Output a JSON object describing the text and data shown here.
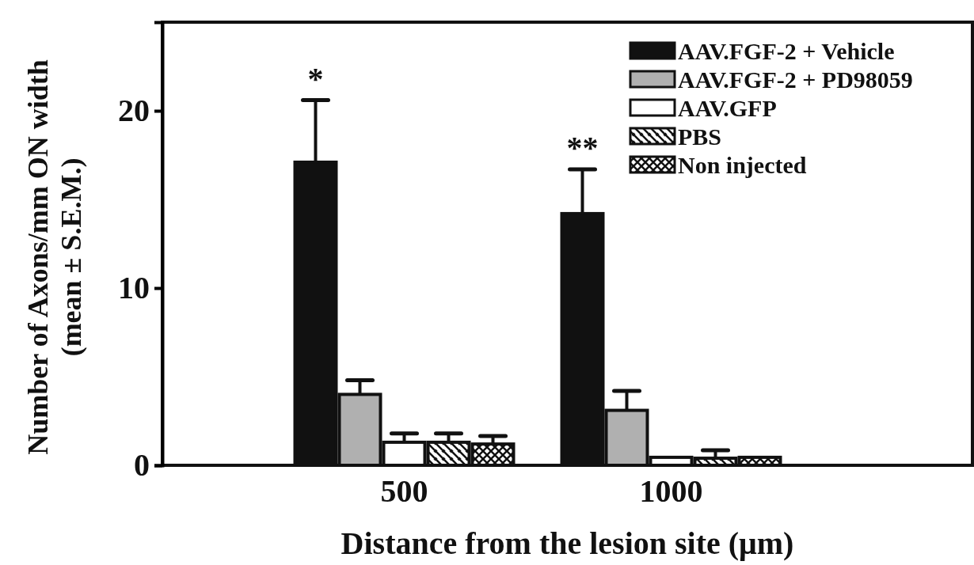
{
  "chart_data": {
    "type": "bar",
    "xlabel": "Distance from the lesion site (μm)",
    "ylabel": "Number of Axons/mm ON width\n(mean ± S.E.M.)",
    "categories": [
      "500",
      "1000"
    ],
    "series": [
      {
        "name": "AAV.FGF-2 + Vehicle",
        "color": "#111111",
        "values": [
          17.1,
          14.2
        ],
        "errors": [
          3.5,
          2.5
        ]
      },
      {
        "name": "AAV.FGF-2 + PD98059",
        "color": "#b0b0b0",
        "values": [
          4.0,
          3.1
        ],
        "errors": [
          0.8,
          1.1
        ]
      },
      {
        "name": "AAV.GFP",
        "color": "#ffffff",
        "values": [
          1.3,
          0.45
        ],
        "errors": [
          0.5,
          null
        ]
      },
      {
        "name": "PBS",
        "color": "#111111",
        "values": [
          1.3,
          0.4
        ],
        "errors": [
          0.5,
          0.45
        ]
      },
      {
        "name": "Non injected",
        "color": "#111111",
        "values": [
          1.2,
          0.45
        ],
        "errors": [
          0.45,
          null
        ]
      }
    ],
    "ylim": [
      0,
      25
    ],
    "yticks": [
      0,
      10,
      20
    ],
    "legend": "top right",
    "annotations": [
      "*",
      "**"
    ]
  }
}
